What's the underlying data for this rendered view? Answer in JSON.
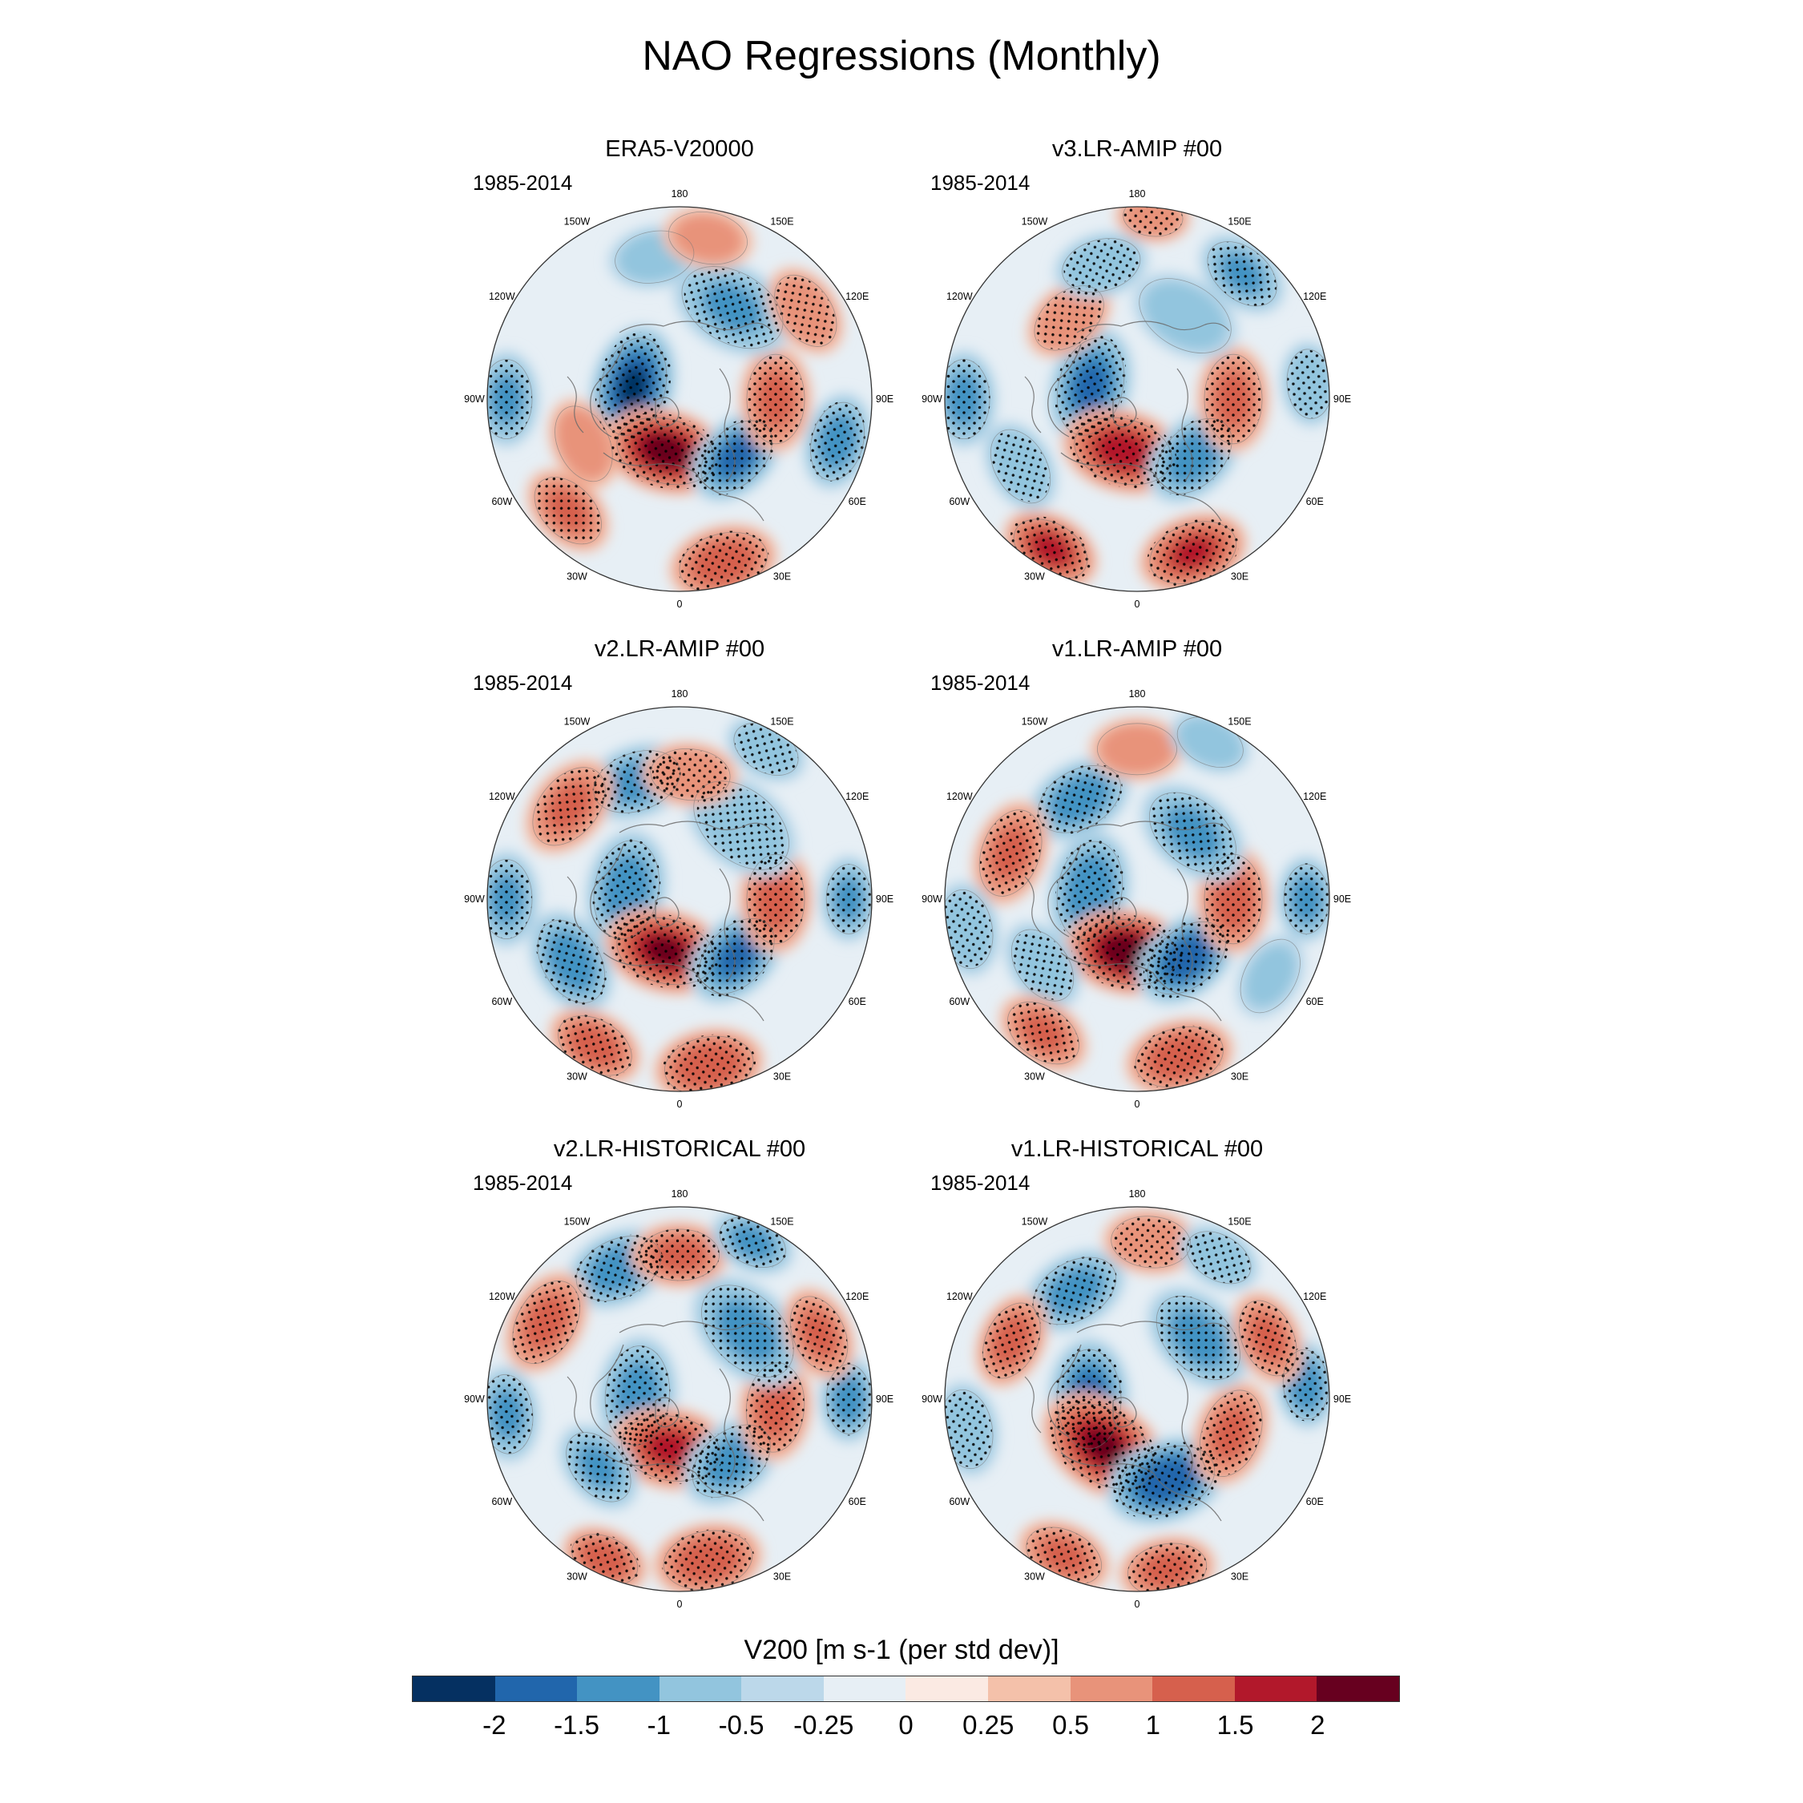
{
  "title": "NAO Regressions (Monthly)",
  "panels": [
    {
      "title": "ERA5-V20000",
      "period": "1985-2014"
    },
    {
      "title": "v3.LR-AMIP  #00",
      "period": "1985-2014"
    },
    {
      "title": "v2.LR-AMIP  #00",
      "period": "1985-2014"
    },
    {
      "title": "v1.LR-AMIP  #00",
      "period": "1985-2014"
    },
    {
      "title": "v2.LR-HISTORICAL  #00",
      "period": "1985-2014"
    },
    {
      "title": "v1.LR-HISTORICAL  #00",
      "period": "1985-2014"
    }
  ],
  "longitude_labels": [
    "180",
    "150E",
    "120E",
    "90E",
    "60E",
    "30E",
    "0",
    "30W",
    "60W",
    "90W",
    "120W",
    "150W"
  ],
  "colorbar": {
    "title": "V200 [m s-1 (per std dev)]",
    "ticks": [
      "-2",
      "-1.5",
      "-1",
      "-0.5",
      "-0.25",
      "0",
      "0.25",
      "0.5",
      "1",
      "1.5",
      "2"
    ],
    "colors": [
      "#053061",
      "#2166ac",
      "#4393c3",
      "#92c5de",
      "#bcd8ea",
      "#e7eff5",
      "#fbeae3",
      "#f4c1aa",
      "#e8937a",
      "#d6604d",
      "#b2182b",
      "#67001f"
    ]
  },
  "chart_data": {
    "type": "map",
    "projection": "north polar stereographic",
    "variable": "V200",
    "units": "m s-1 (per std dev)",
    "stippling": "significant regions",
    "panels": [
      {
        "title": "ERA5-V20000",
        "period": "1985-2014",
        "features": [
          {
            "lon": 255,
            "r": 0.25,
            "v": -2.0,
            "s": 1.0
          },
          {
            "lon": 345,
            "r": 0.28,
            "v": 2.2,
            "s": 1.0
          },
          {
            "lon": 45,
            "r": 0.42,
            "v": -1.6,
            "s": 0.85
          },
          {
            "lon": 90,
            "r": 0.5,
            "v": 1.0,
            "s": 0.9
          },
          {
            "lon": 150,
            "r": 0.55,
            "v": -1.0,
            "s": 1.1
          },
          {
            "lon": 295,
            "r": 0.55,
            "v": 0.8,
            "s": 0.8
          },
          {
            "lon": 15,
            "r": 0.88,
            "v": 1.3,
            "s": 0.9
          },
          {
            "lon": 315,
            "r": 0.82,
            "v": 1.0,
            "s": 0.8
          },
          {
            "lon": 75,
            "r": 0.85,
            "v": -1.2,
            "s": 0.8
          },
          {
            "lon": 270,
            "r": 0.9,
            "v": -1.0,
            "s": 0.8
          },
          {
            "lon": 190,
            "r": 0.75,
            "v": -0.7,
            "s": 0.8
          },
          {
            "lon": 170,
            "r": 0.85,
            "v": 0.6,
            "s": 0.8
          },
          {
            "lon": 125,
            "r": 0.8,
            "v": 0.9,
            "s": 0.8
          }
        ]
      },
      {
        "title": "v3.LR-AMIP  #00",
        "period": "1985-2014",
        "features": [
          {
            "lon": 255,
            "r": 0.25,
            "v": -1.5,
            "s": 1.0
          },
          {
            "lon": 345,
            "r": 0.28,
            "v": 1.8,
            "s": 1.0
          },
          {
            "lon": 45,
            "r": 0.42,
            "v": -1.3,
            "s": 0.9
          },
          {
            "lon": 90,
            "r": 0.5,
            "v": 1.0,
            "s": 0.9
          },
          {
            "lon": 150,
            "r": 0.5,
            "v": -0.7,
            "s": 1.0
          },
          {
            "lon": 220,
            "r": 0.55,
            "v": 0.9,
            "s": 0.8
          },
          {
            "lon": 195,
            "r": 0.72,
            "v": -0.9,
            "s": 0.8
          },
          {
            "lon": 175,
            "r": 0.95,
            "v": 0.9,
            "s": 0.6
          },
          {
            "lon": 140,
            "r": 0.85,
            "v": -1.0,
            "s": 0.8
          },
          {
            "lon": 20,
            "r": 0.85,
            "v": 1.5,
            "s": 0.9
          },
          {
            "lon": 330,
            "r": 0.9,
            "v": 1.6,
            "s": 0.8
          },
          {
            "lon": 300,
            "r": 0.7,
            "v": -0.9,
            "s": 0.8
          },
          {
            "lon": 270,
            "r": 0.9,
            "v": -1.1,
            "s": 0.8
          },
          {
            "lon": 95,
            "r": 0.9,
            "v": -0.9,
            "s": 0.7
          }
        ]
      },
      {
        "title": "v2.LR-AMIP  #00",
        "period": "1985-2014",
        "features": [
          {
            "lon": 260,
            "r": 0.28,
            "v": -1.3,
            "s": 1.0
          },
          {
            "lon": 345,
            "r": 0.28,
            "v": 2.0,
            "s": 1.0
          },
          {
            "lon": 45,
            "r": 0.42,
            "v": -1.5,
            "s": 0.9
          },
          {
            "lon": 90,
            "r": 0.5,
            "v": 1.2,
            "s": 0.9
          },
          {
            "lon": 140,
            "r": 0.5,
            "v": -0.9,
            "s": 1.1
          },
          {
            "lon": 200,
            "r": 0.65,
            "v": -1.2,
            "s": 0.9
          },
          {
            "lon": 175,
            "r": 0.65,
            "v": 0.9,
            "s": 0.8
          },
          {
            "lon": 230,
            "r": 0.75,
            "v": 1.0,
            "s": 0.9
          },
          {
            "lon": 270,
            "r": 0.9,
            "v": -1.0,
            "s": 0.8
          },
          {
            "lon": 300,
            "r": 0.65,
            "v": -1.3,
            "s": 0.9
          },
          {
            "lon": 10,
            "r": 0.88,
            "v": 1.4,
            "s": 0.9
          },
          {
            "lon": 330,
            "r": 0.88,
            "v": 1.2,
            "s": 0.8
          },
          {
            "lon": 90,
            "r": 0.88,
            "v": -1.0,
            "s": 0.7
          },
          {
            "lon": 150,
            "r": 0.9,
            "v": -0.9,
            "s": 0.7
          }
        ]
      },
      {
        "title": "v1.LR-AMIP  #00",
        "period": "1985-2014",
        "features": [
          {
            "lon": 260,
            "r": 0.25,
            "v": -1.4,
            "s": 1.0
          },
          {
            "lon": 350,
            "r": 0.28,
            "v": 2.4,
            "s": 1.0
          },
          {
            "lon": 40,
            "r": 0.4,
            "v": -1.8,
            "s": 0.9
          },
          {
            "lon": 90,
            "r": 0.5,
            "v": 1.2,
            "s": 0.9
          },
          {
            "lon": 140,
            "r": 0.45,
            "v": -1.1,
            "s": 1.0
          },
          {
            "lon": 210,
            "r": 0.6,
            "v": -1.3,
            "s": 0.9
          },
          {
            "lon": 180,
            "r": 0.78,
            "v": 0.8,
            "s": 0.8
          },
          {
            "lon": 155,
            "r": 0.9,
            "v": -0.8,
            "s": 0.7
          },
          {
            "lon": 250,
            "r": 0.7,
            "v": 1.0,
            "s": 0.9
          },
          {
            "lon": 280,
            "r": 0.9,
            "v": -0.9,
            "s": 0.8
          },
          {
            "lon": 305,
            "r": 0.6,
            "v": -0.9,
            "s": 0.8
          },
          {
            "lon": 15,
            "r": 0.85,
            "v": 1.3,
            "s": 0.9
          },
          {
            "lon": 325,
            "r": 0.85,
            "v": 1.0,
            "s": 0.8
          },
          {
            "lon": 90,
            "r": 0.88,
            "v": -1.1,
            "s": 0.7
          },
          {
            "lon": 60,
            "r": 0.8,
            "v": -0.5,
            "s": 0.8
          }
        ]
      },
      {
        "title": "v2.LR-HISTORICAL  #00",
        "period": "1985-2014",
        "features": [
          {
            "lon": 265,
            "r": 0.22,
            "v": -1.2,
            "s": 1.0
          },
          {
            "lon": 350,
            "r": 0.26,
            "v": 1.6,
            "s": 1.0
          },
          {
            "lon": 40,
            "r": 0.42,
            "v": -1.2,
            "s": 0.9
          },
          {
            "lon": 85,
            "r": 0.5,
            "v": 1.1,
            "s": 0.9
          },
          {
            "lon": 135,
            "r": 0.5,
            "v": -1.2,
            "s": 1.1
          },
          {
            "lon": 205,
            "r": 0.75,
            "v": -1.3,
            "s": 0.9
          },
          {
            "lon": 180,
            "r": 0.75,
            "v": 1.1,
            "s": 0.8
          },
          {
            "lon": 155,
            "r": 0.9,
            "v": -1.1,
            "s": 0.7
          },
          {
            "lon": 240,
            "r": 0.8,
            "v": 1.1,
            "s": 0.9
          },
          {
            "lon": 275,
            "r": 0.9,
            "v": -1.0,
            "s": 0.8
          },
          {
            "lon": 310,
            "r": 0.55,
            "v": -1.0,
            "s": 0.8
          },
          {
            "lon": 10,
            "r": 0.85,
            "v": 1.3,
            "s": 0.9
          },
          {
            "lon": 335,
            "r": 0.92,
            "v": 1.3,
            "s": 0.7
          },
          {
            "lon": 90,
            "r": 0.88,
            "v": -1.2,
            "s": 0.7
          },
          {
            "lon": 115,
            "r": 0.8,
            "v": 1.0,
            "s": 0.8
          }
        ]
      },
      {
        "title": "v1.LR-HISTORICAL  #00",
        "period": "1985-2014",
        "features": [
          {
            "lon": 270,
            "r": 0.25,
            "v": -1.6,
            "s": 1.0
          },
          {
            "lon": 325,
            "r": 0.3,
            "v": 2.0,
            "s": 1.1
          },
          {
            "lon": 20,
            "r": 0.45,
            "v": -1.9,
            "s": 1.0
          },
          {
            "lon": 70,
            "r": 0.52,
            "v": 1.0,
            "s": 0.9
          },
          {
            "lon": 135,
            "r": 0.45,
            "v": -1.2,
            "s": 1.0
          },
          {
            "lon": 210,
            "r": 0.65,
            "v": -1.2,
            "s": 0.9
          },
          {
            "lon": 175,
            "r": 0.82,
            "v": 0.9,
            "s": 0.8
          },
          {
            "lon": 150,
            "r": 0.85,
            "v": -0.9,
            "s": 0.7
          },
          {
            "lon": 245,
            "r": 0.72,
            "v": 1.1,
            "s": 0.8
          },
          {
            "lon": 280,
            "r": 0.9,
            "v": -0.9,
            "s": 0.8
          },
          {
            "lon": 10,
            "r": 0.9,
            "v": 1.1,
            "s": 0.8
          },
          {
            "lon": 335,
            "r": 0.9,
            "v": 1.0,
            "s": 0.8
          },
          {
            "lon": 95,
            "r": 0.88,
            "v": -1.3,
            "s": 0.7
          },
          {
            "lon": 115,
            "r": 0.75,
            "v": 1.0,
            "s": 0.8
          }
        ]
      }
    ]
  }
}
